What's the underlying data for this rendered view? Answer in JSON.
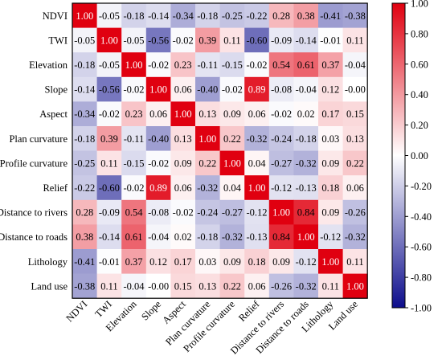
{
  "chart_data": {
    "type": "heatmap",
    "title": "",
    "xlabel": "",
    "ylabel": "",
    "row_labels": [
      "NDVI",
      "TWI",
      "Elevation",
      "Slope",
      "Aspect",
      "Plan curvature",
      "Profile curvature",
      "Relief",
      "Distance to rivers",
      "Distance to roads",
      "Lithology",
      "Land use"
    ],
    "col_labels": [
      "NDVI",
      "TWI",
      "Elevation",
      "Slope",
      "Aspect",
      "Plan curvature",
      "Profile curvature",
      "Relief",
      "Distance to rivers",
      "Distance to roads",
      "Lithology",
      "Land use"
    ],
    "matrix": [
      [
        "1.00",
        "-0.05",
        "-0.18",
        "-0.14",
        "-0.34",
        "-0.18",
        "-0.25",
        "-0.22",
        "0.28",
        "0.38",
        "-0.41",
        "-0.38"
      ],
      [
        "-0.05",
        "1.00",
        "-0.05",
        "-0.56",
        "-0.02",
        "0.39",
        "0.11",
        "-0.60",
        "-0.09",
        "-0.14",
        "-0.01",
        "0.11"
      ],
      [
        "-0.18",
        "-0.05",
        "1.00",
        "-0.02",
        "0.23",
        "-0.11",
        "-0.15",
        "-0.02",
        "0.54",
        "0.61",
        "0.37",
        "-0.04"
      ],
      [
        "-0.14",
        "-0.56",
        "-0.02",
        "1.00",
        "0.06",
        "-0.40",
        "-0.02",
        "0.89",
        "-0.08",
        "-0.04",
        "0.12",
        "-0.00"
      ],
      [
        "-0.34",
        "-0.02",
        "0.23",
        "0.06",
        "1.00",
        "0.13",
        "0.09",
        "0.06",
        "-0.02",
        "0.02",
        "0.17",
        "0.15"
      ],
      [
        "-0.18",
        "0.39",
        "-0.11",
        "-0.40",
        "0.13",
        "1.00",
        "0.22",
        "-0.32",
        "-0.24",
        "-0.18",
        "0.03",
        "0.13"
      ],
      [
        "-0.25",
        "0.11",
        "-0.15",
        "-0.02",
        "0.09",
        "0.22",
        "1.00",
        "0.04",
        "-0.27",
        "-0.32",
        "0.09",
        "0.22"
      ],
      [
        "-0.22",
        "-0.60",
        "-0.02",
        "0.89",
        "0.06",
        "-0.32",
        "0.04",
        "1.00",
        "-0.12",
        "-0.13",
        "0.18",
        "0.06"
      ],
      [
        "0.28",
        "-0.09",
        "0.54",
        "-0.08",
        "-0.02",
        "-0.24",
        "-0.27",
        "-0.12",
        "1.00",
        "0.84",
        "0.09",
        "-0.26"
      ],
      [
        "0.38",
        "-0.14",
        "0.61",
        "-0.04",
        "0.02",
        "-0.18",
        "-0.32",
        "-0.13",
        "0.84",
        "1.00",
        "-0.12",
        "-0.32"
      ],
      [
        "-0.41",
        "-0.01",
        "0.37",
        "0.12",
        "0.17",
        "0.03",
        "0.09",
        "0.18",
        "0.09",
        "-0.12",
        "1.00",
        "0.11"
      ],
      [
        "-0.38",
        "0.11",
        "-0.04",
        "-0.00",
        "0.15",
        "0.13",
        "0.22",
        "0.06",
        "-0.26",
        "-0.32",
        "0.11",
        "1.00"
      ]
    ],
    "value_range": [
      -1,
      1
    ],
    "colorbar": {
      "ticks": [
        "1.00",
        "0.80",
        "0.60",
        "0.40",
        "0.20",
        "0.00",
        "-0.20",
        "-0.40",
        "-0.60",
        "-0.80",
        "-1.00"
      ],
      "colors": {
        "low": "#0d0d8c",
        "mid": "#ffffff",
        "high": "#e00010"
      }
    },
    "legend_position": "right",
    "grid": false
  }
}
